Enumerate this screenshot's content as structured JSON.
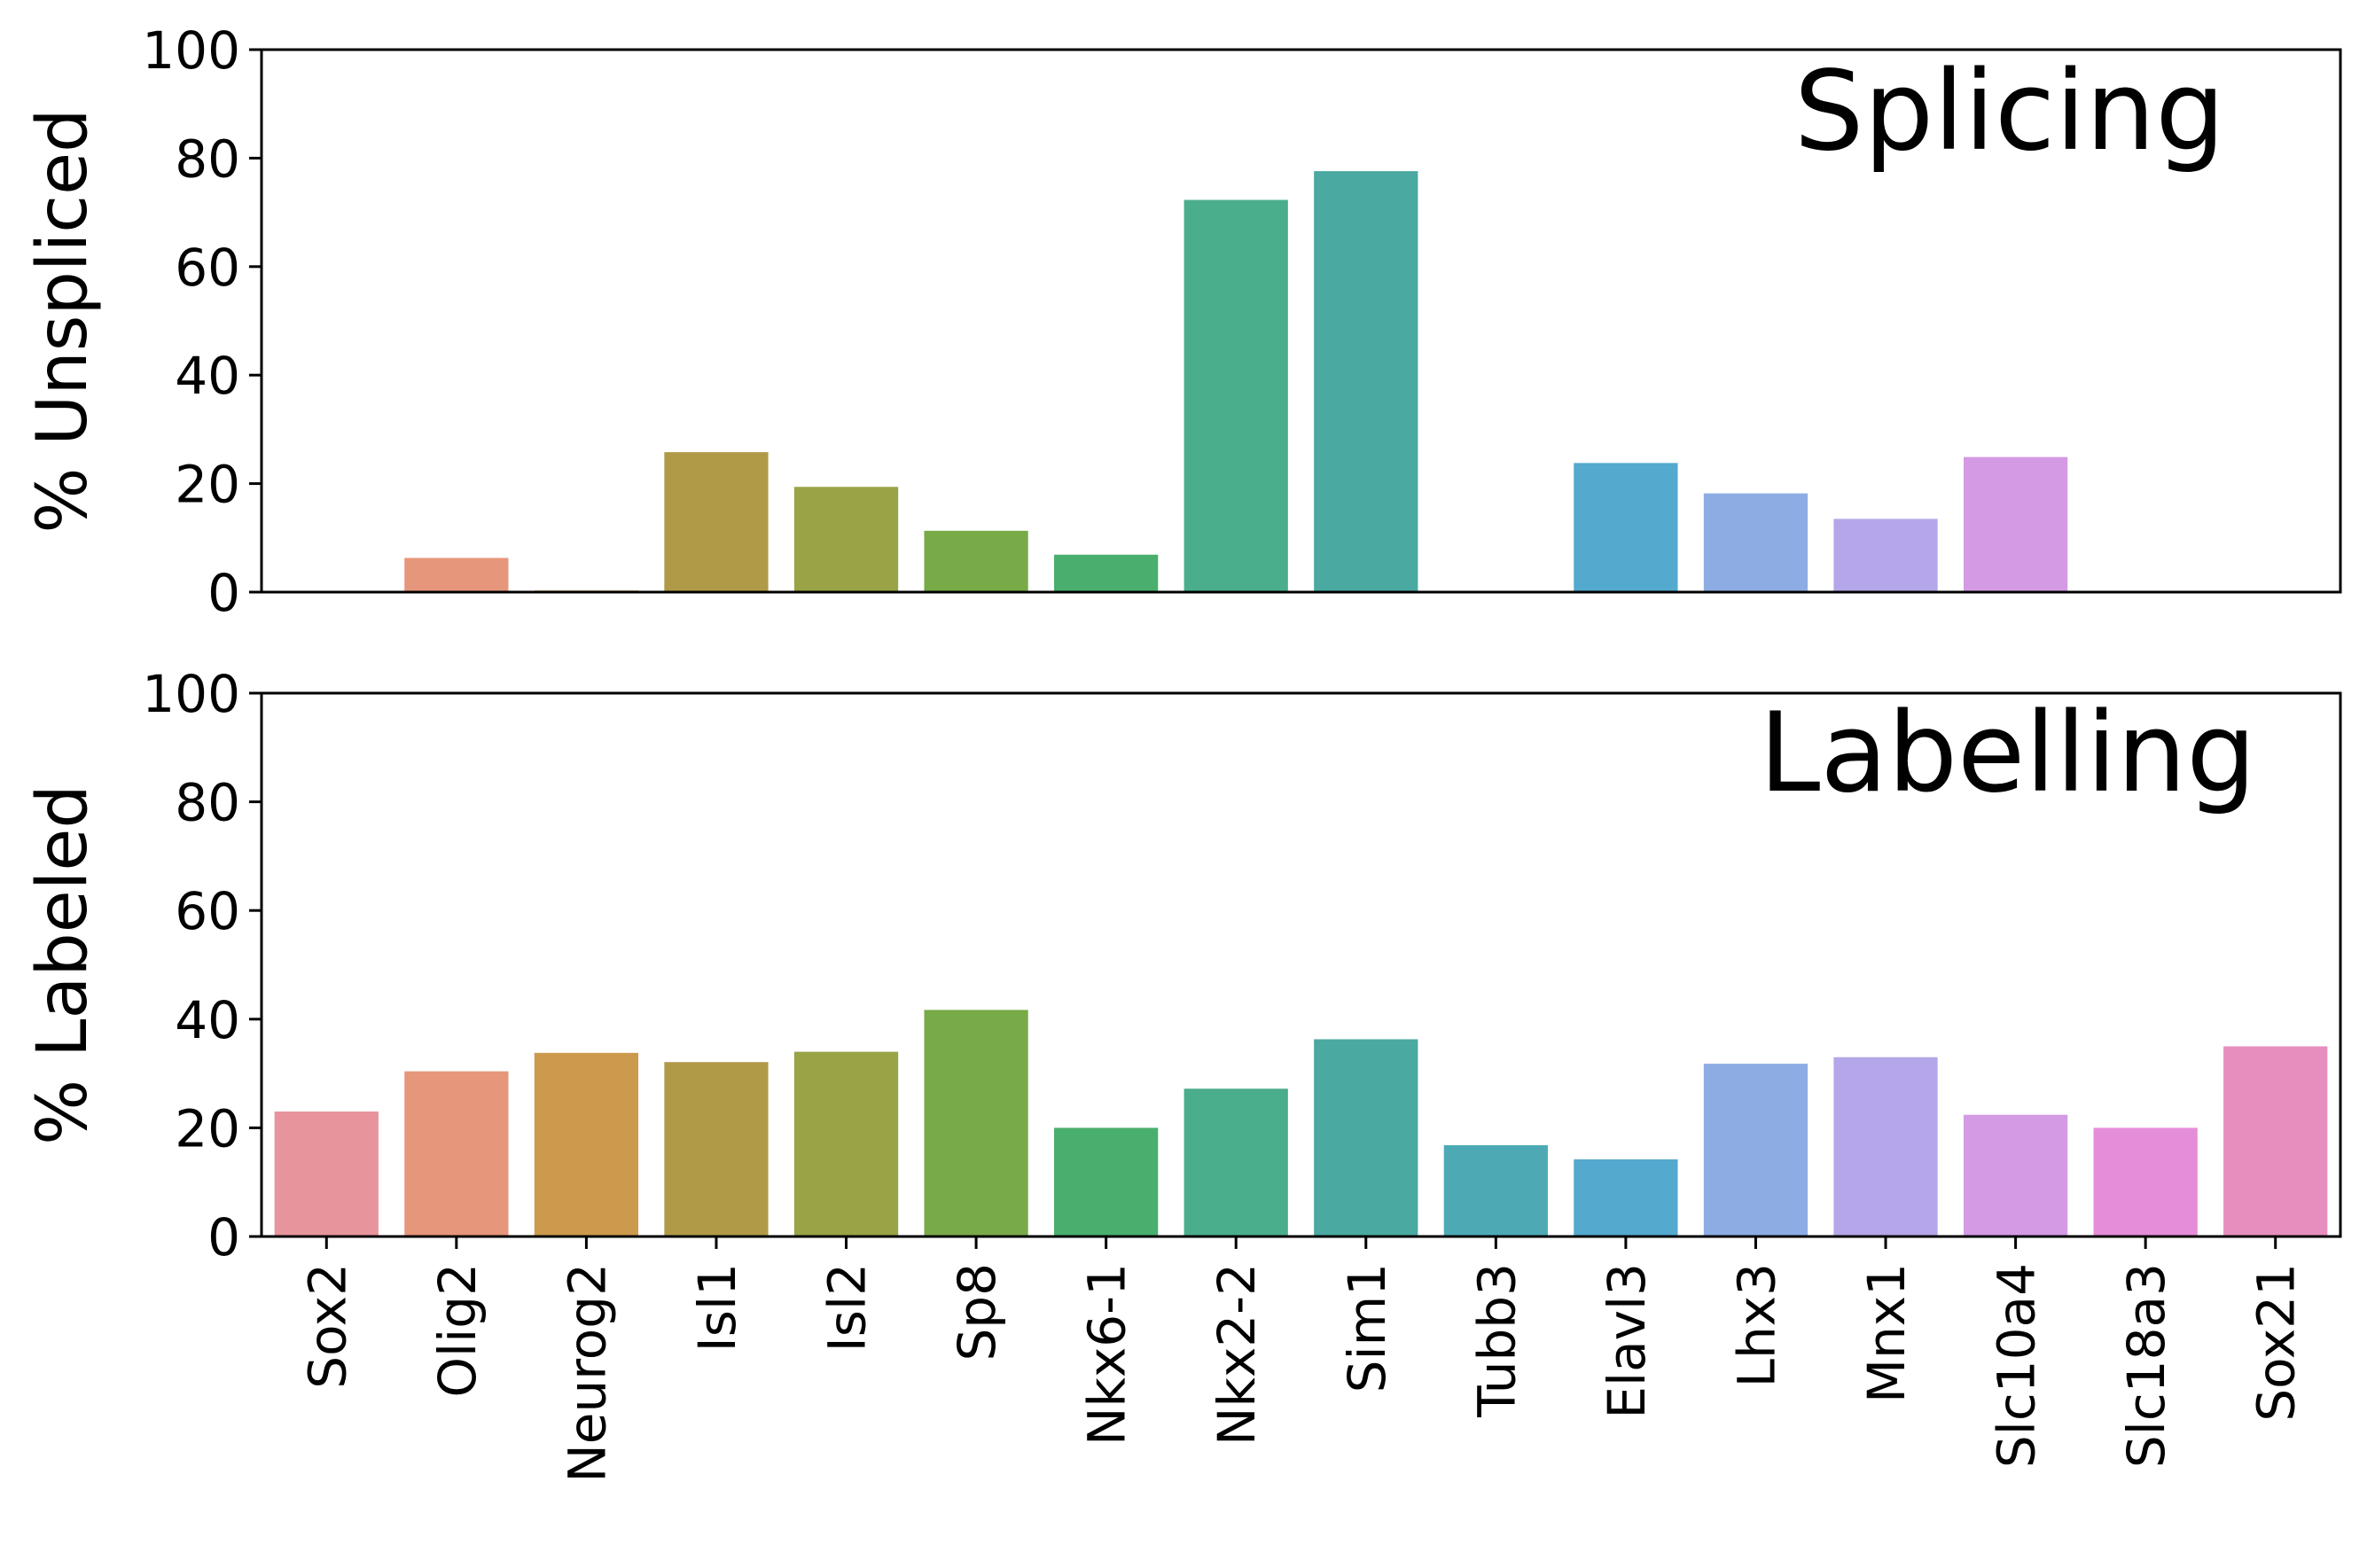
{
  "chart_data": {
    "type": "bar",
    "categories": [
      "Sox2",
      "Olig2",
      "Neurog2",
      "Isl1",
      "Isl2",
      "Sp8",
      "Nkx6-1",
      "Nkx2-2",
      "Sim1",
      "Tubb3",
      "Elavl3",
      "Lhx3",
      "Mnx1",
      "Slc10a4",
      "Slc18a3",
      "Sox21"
    ],
    "colors": [
      "#e8949c",
      "#e6967a",
      "#cb9a4c",
      "#b09a48",
      "#9aa346",
      "#78aa48",
      "#4aae6e",
      "#4aad8c",
      "#4aa9a1",
      "#4daab5",
      "#54a9cf",
      "#8cace3",
      "#b4a6e8",
      "#d49ae4",
      "#e58dd8",
      "#e68fbe"
    ],
    "ylim": [
      0,
      100
    ],
    "yticks": [
      0,
      20,
      40,
      60,
      80,
      100
    ],
    "panels": [
      {
        "title": "Splicing",
        "ylabel": "% Unspliced",
        "values": [
          0,
          6.3,
          0.3,
          25.8,
          19.4,
          11.3,
          6.9,
          72.3,
          77.6,
          0,
          23.8,
          18.2,
          13.5,
          24.9,
          0,
          0
        ]
      },
      {
        "title": "Labelling",
        "ylabel": "% Labeled",
        "values": [
          23.0,
          30.4,
          33.8,
          32.1,
          34.0,
          41.7,
          20.0,
          27.2,
          36.3,
          16.8,
          14.2,
          31.8,
          33.0,
          22.4,
          20.0,
          35.0
        ]
      }
    ]
  }
}
